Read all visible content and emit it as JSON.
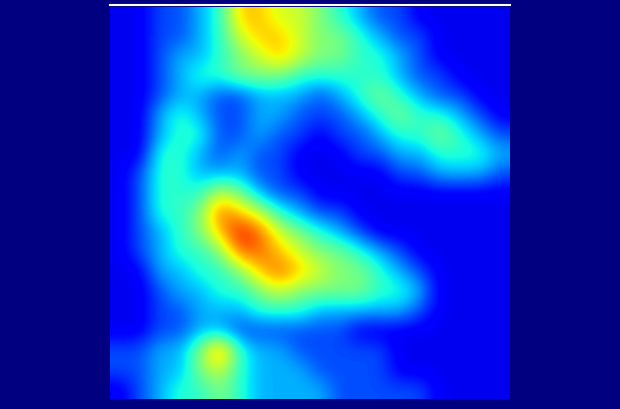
{
  "chart_data": {
    "type": "heatmap",
    "color": "jet",
    "tick_labels": false,
    "color_range": [
      0,
      10
    ],
    "cells": [
      [
        1,
        1,
        2,
        2,
        3,
        4,
        7,
        7,
        6,
        6,
        5,
        4,
        3,
        2,
        2,
        1,
        1,
        1,
        1,
        1
      ],
      [
        1,
        1,
        2,
        2,
        3,
        4,
        6,
        7,
        7,
        6,
        5,
        5,
        4,
        3,
        2,
        2,
        1,
        1,
        1,
        1
      ],
      [
        1,
        1,
        2,
        3,
        3,
        4,
        5,
        6,
        7,
        6,
        5,
        5,
        4,
        4,
        3,
        2,
        1,
        1,
        1,
        1
      ],
      [
        1,
        1,
        2,
        3,
        4,
        4,
        5,
        5,
        5,
        4,
        4,
        4,
        4,
        4,
        3,
        2,
        2,
        1,
        1,
        1
      ],
      [
        1,
        1,
        2,
        3,
        3,
        2,
        2,
        3,
        3,
        3,
        2,
        3,
        4,
        5,
        4,
        3,
        2,
        2,
        1,
        1
      ],
      [
        1,
        1,
        3,
        4,
        3,
        2,
        2,
        3,
        3,
        2,
        2,
        2,
        3,
        4,
        5,
        4,
        4,
        3,
        2,
        1
      ],
      [
        1,
        1,
        3,
        4,
        4,
        2,
        2,
        3,
        2,
        2,
        1,
        2,
        2,
        3,
        4,
        4,
        5,
        4,
        3,
        2
      ],
      [
        1,
        1,
        4,
        4,
        3,
        2,
        3,
        2,
        2,
        1,
        1,
        1,
        2,
        2,
        3,
        3,
        4,
        4,
        4,
        3
      ],
      [
        1,
        2,
        4,
        4,
        3,
        3,
        3,
        2,
        2,
        1,
        1,
        1,
        1,
        1,
        2,
        2,
        3,
        3,
        3,
        2
      ],
      [
        1,
        2,
        4,
        4,
        4,
        6,
        5,
        3,
        2,
        2,
        1,
        1,
        1,
        1,
        1,
        1,
        1,
        1,
        1,
        1
      ],
      [
        1,
        2,
        4,
        4,
        5,
        8,
        7,
        6,
        4,
        3,
        2,
        2,
        1,
        1,
        1,
        1,
        1,
        1,
        1,
        1
      ],
      [
        1,
        2,
        3,
        4,
        5,
        7,
        9,
        8,
        6,
        5,
        4,
        3,
        2,
        1,
        1,
        1,
        1,
        1,
        1,
        1
      ],
      [
        1,
        2,
        3,
        4,
        4,
        5,
        8,
        8,
        7,
        6,
        5,
        5,
        4,
        3,
        2,
        1,
        1,
        1,
        1,
        1
      ],
      [
        1,
        1,
        3,
        3,
        4,
        4,
        5,
        7,
        8,
        7,
        6,
        5,
        5,
        4,
        3,
        2,
        1,
        1,
        1,
        1
      ],
      [
        1,
        1,
        2,
        3,
        3,
        4,
        4,
        5,
        6,
        5,
        5,
        5,
        5,
        4,
        4,
        3,
        1,
        1,
        1,
        1
      ],
      [
        1,
        1,
        2,
        2,
        3,
        3,
        3,
        4,
        4,
        4,
        3,
        3,
        3,
        3,
        3,
        2,
        1,
        1,
        1,
        1
      ],
      [
        1,
        1,
        2,
        2,
        3,
        3,
        2,
        2,
        2,
        2,
        2,
        2,
        1,
        1,
        1,
        1,
        1,
        1,
        1,
        1
      ],
      [
        2,
        2,
        3,
        3,
        5,
        8,
        4,
        3,
        3,
        2,
        2,
        2,
        2,
        2,
        1,
        1,
        1,
        1,
        1,
        1
      ],
      [
        2,
        2,
        3,
        3,
        5,
        6,
        4,
        3,
        3,
        3,
        2,
        2,
        2,
        2,
        1,
        1,
        1,
        1,
        1,
        1
      ],
      [
        1,
        2,
        3,
        4,
        4,
        5,
        4,
        3,
        3,
        3,
        3,
        2,
        2,
        2,
        2,
        2,
        1,
        1,
        1,
        1
      ]
    ]
  }
}
